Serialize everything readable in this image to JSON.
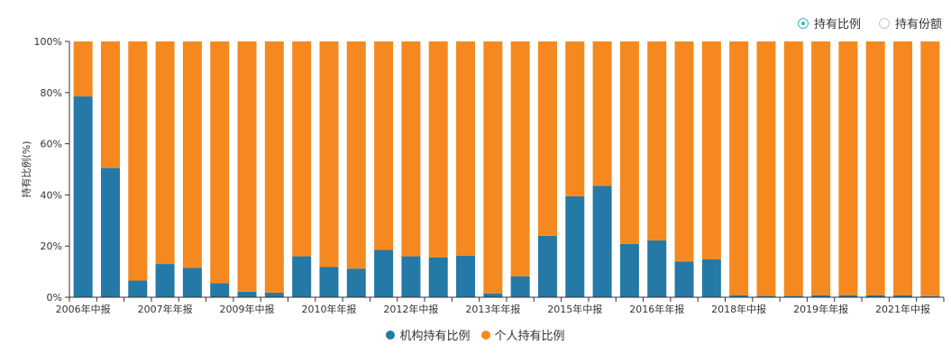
{
  "toggles": [
    {
      "label": "持有比例",
      "selected": true
    },
    {
      "label": "持有份额",
      "selected": false
    }
  ],
  "colors": {
    "institution": "#2479a6",
    "individual": "#f5891f",
    "axis": "#333333",
    "grid": "#e6e6e6",
    "radio_active": "#3bb4c1"
  },
  "chart_data": {
    "type": "bar",
    "stacked": true,
    "ylabel": "持有比例(%)",
    "ylim": [
      0,
      100
    ],
    "yticks": [
      "0%",
      "20%",
      "40%",
      "60%",
      "80%",
      "100%"
    ],
    "xtick_labels": [
      "2006年中报",
      "2007年年报",
      "2009年中报",
      "2010年年报",
      "2012年中报",
      "2013年年报",
      "2015年中报",
      "2016年年报",
      "2018年中报",
      "2019年年报",
      "2021年中报"
    ],
    "xtick_every": 3,
    "num_bars": 32,
    "legend_position": "bottom",
    "series": [
      {
        "name": "机构持有比例",
        "values": [
          78.5,
          50.5,
          6.5,
          13,
          11.5,
          5.5,
          2.2,
          1.8,
          16,
          11.8,
          11.2,
          18.5,
          16,
          15.5,
          16.3,
          1.5,
          8.2,
          24,
          39.5,
          43.5,
          20.8,
          22.2,
          14,
          14.8,
          0.8,
          0.5,
          0.5,
          0.8,
          0.8,
          0.8,
          0.8,
          0.4
        ]
      },
      {
        "name": "个人持有比例",
        "values": [
          21.5,
          49.5,
          93.5,
          87,
          88.5,
          94.5,
          97.8,
          98.2,
          84,
          88.2,
          88.8,
          81.5,
          84,
          84.5,
          83.7,
          98.5,
          91.8,
          76,
          60.5,
          56.5,
          79.2,
          77.8,
          86,
          85.2,
          99.2,
          99.5,
          99.5,
          99.2,
          99.2,
          99.2,
          99.2,
          99.6
        ]
      }
    ]
  }
}
